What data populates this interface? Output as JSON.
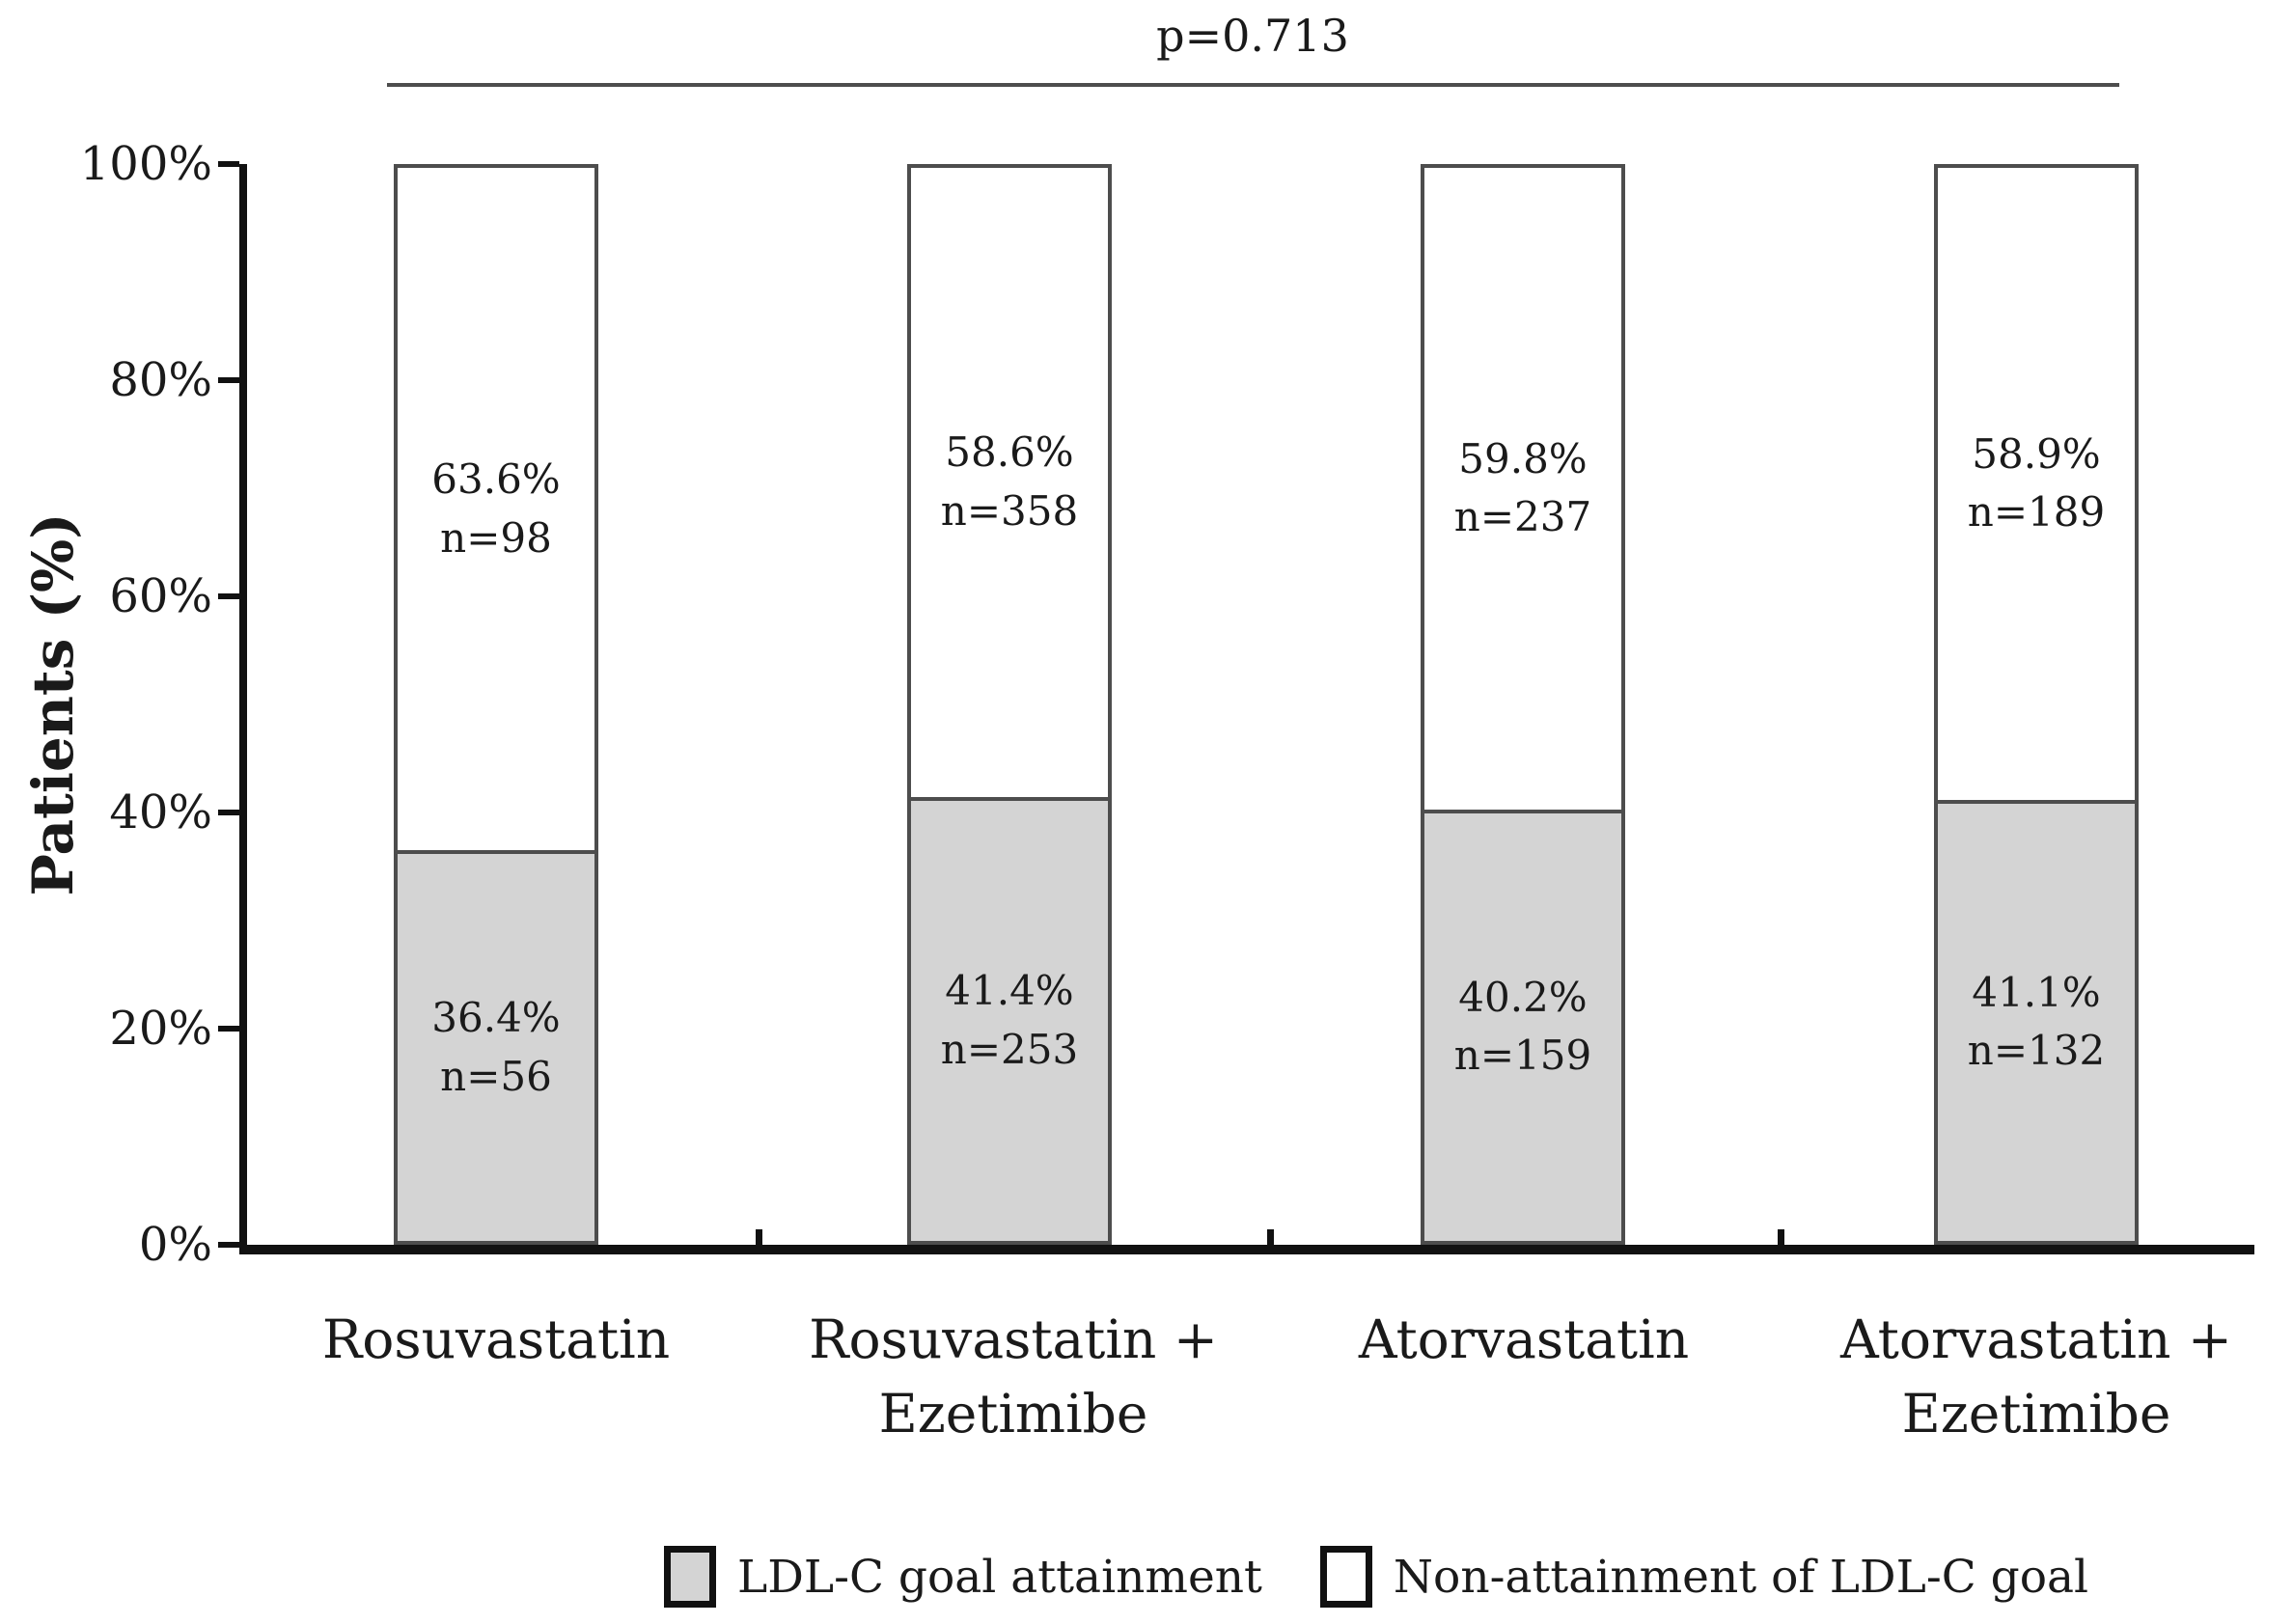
{
  "figure": {
    "p_annotation": "p=0.713",
    "y_axis_title": "Patients (%)",
    "y_ticks": [
      "100%",
      "80%",
      "60%",
      "40%",
      "20%",
      "0%"
    ]
  },
  "bars": [
    {
      "category_line1": "Rosuvastatin",
      "category_line2": "",
      "top_pct": "63.6%",
      "top_n": "n=98",
      "bottom_pct": "36.4%",
      "bottom_n": "n=56"
    },
    {
      "category_line1": "Rosuvastatin +",
      "category_line2": "Ezetimibe",
      "top_pct": "58.6%",
      "top_n": "n=358",
      "bottom_pct": "41.4%",
      "bottom_n": "n=253"
    },
    {
      "category_line1": "Atorvastatin",
      "category_line2": "",
      "top_pct": "59.8%",
      "top_n": "n=237",
      "bottom_pct": "40.2%",
      "bottom_n": "n=159"
    },
    {
      "category_line1": "Atorvastatin +",
      "category_line2": "Ezetimibe",
      "top_pct": "58.9%",
      "top_n": "n=189",
      "bottom_pct": "41.1%",
      "bottom_n": "n=132"
    }
  ],
  "legend": [
    {
      "label": "LDL-C goal attainment"
    },
    {
      "label": "Non-attainment of LDL-C goal"
    }
  ],
  "colors": {
    "attainment_fill": "#d4d4d4",
    "non_attainment_fill": "#ffffff",
    "bar_border": "#4d4d4d",
    "axis": "#111111"
  },
  "chart_data": {
    "type": "bar",
    "subtype": "100%-stacked-vertical",
    "title": "",
    "xlabel": "",
    "ylabel": "Patients (%)",
    "ylim": [
      0,
      100
    ],
    "yticks": [
      0,
      20,
      40,
      60,
      80,
      100
    ],
    "ytick_format": "percent",
    "grid": false,
    "legend_position": "bottom",
    "categories": [
      "Rosuvastatin",
      "Rosuvastatin + Ezetimibe",
      "Atorvastatin",
      "Atorvastatin + Ezetimibe"
    ],
    "series": [
      {
        "name": "LDL-C goal attainment",
        "values": [
          36.4,
          41.4,
          40.2,
          41.1
        ],
        "n": [
          56,
          253,
          159,
          132
        ],
        "fill": "#d4d4d4",
        "position": "bottom"
      },
      {
        "name": "Non-attainment of LDL-C goal",
        "values": [
          63.6,
          58.6,
          59.8,
          58.9
        ],
        "n": [
          98,
          358,
          237,
          189
        ],
        "fill": "#ffffff",
        "position": "top"
      }
    ],
    "annotations": [
      {
        "text": "p=0.713",
        "type": "comparison-line-across-all-bars"
      }
    ]
  }
}
